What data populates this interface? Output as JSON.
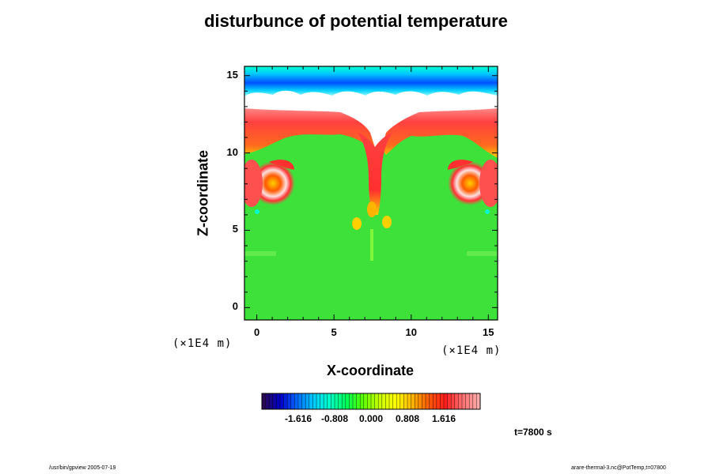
{
  "chart_data": {
    "type": "heatmap",
    "title": "disturbunce of potential temperature",
    "xlabel": "X-coordinate",
    "ylabel": "Z-coordinate",
    "x_unit": "(×1E4 m)",
    "y_unit": "(×1E4 m)",
    "xlim": [
      -0.8,
      15.6
    ],
    "ylim": [
      -0.8,
      15.6
    ],
    "x_ticks": [
      0,
      5,
      10,
      15
    ],
    "x_tick_labels": [
      "0",
      "5",
      "10",
      "15"
    ],
    "y_ticks": [
      0,
      5,
      10,
      15
    ],
    "y_tick_labels": [
      "0",
      "5",
      "10",
      "15"
    ],
    "colorbar": {
      "min": -2.424,
      "max": 2.424,
      "ticks": [
        -1.616,
        -0.808,
        0.0,
        0.808,
        1.616
      ],
      "tick_labels": [
        "-1.616",
        "-0.808",
        "0.000",
        "0.808",
        "1.616"
      ],
      "colors": [
        "#2b0a55",
        "#0000c8",
        "#0066ff",
        "#00c8ff",
        "#00ffc8",
        "#00ff5a",
        "#5aff00",
        "#c8ff00",
        "#ffff00",
        "#ffb400",
        "#ff5a00",
        "#ff1e1e",
        "#ff6e6e",
        "#ffaaaa"
      ]
    },
    "regions": [
      {
        "name": "background",
        "value": 0.0,
        "color": "#3ee03a"
      },
      {
        "name": "upper cold layer",
        "z_range": [
          14.0,
          15.6
        ],
        "color": "#00c8ff"
      },
      {
        "name": "white saturated band",
        "z_range": [
          12.9,
          13.9
        ],
        "color": "#ffffff"
      },
      {
        "name": "warm layer",
        "z_range": [
          10.5,
          12.9
        ],
        "color": "#ff3030"
      },
      {
        "name": "central plume",
        "x_center": 7.4,
        "z_range": [
          5.0,
          11.0
        ],
        "color": "#ff3030"
      },
      {
        "name": "left vortex",
        "x_center": 1.3,
        "z_center": 8.0
      },
      {
        "name": "right vortex",
        "x_center": 13.8,
        "z_center": 8.0
      }
    ]
  },
  "annotations": {
    "time": "t=7800 s",
    "footer_left": "/usr/bin/gpview 2005-07-19",
    "footer_right": "arare-thermal-3.nc@PotTemp,t=07800"
  }
}
